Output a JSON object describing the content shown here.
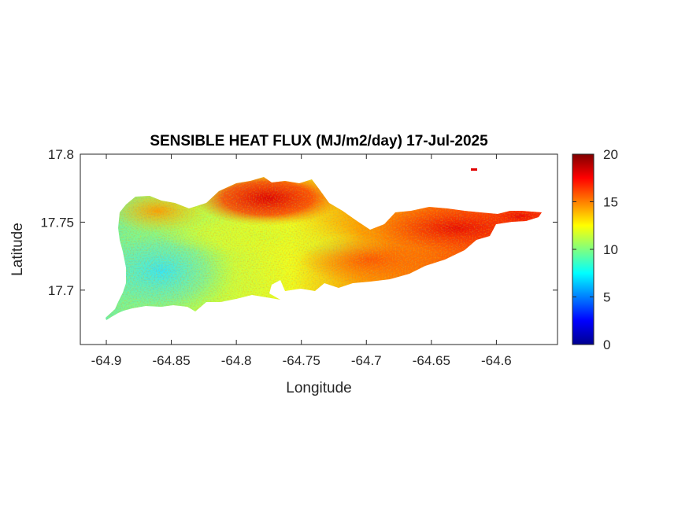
{
  "chart_data": {
    "type": "heatmap",
    "title": "SENSIBLE HEAT FLUX (MJ/m2/day) 17-Jul-2025",
    "xlabel": "Longitude",
    "ylabel": "Latitude",
    "xlim": [
      -64.92,
      -64.553
    ],
    "ylim": [
      17.66,
      17.8
    ],
    "x_ticks": [
      -64.9,
      -64.85,
      -64.8,
      -64.75,
      -64.7,
      -64.65,
      -64.6
    ],
    "x_tick_labels": [
      "-64.9",
      "-64.85",
      "-64.8",
      "-64.75",
      "-64.7",
      "-64.65",
      "-64.6"
    ],
    "y_ticks": [
      17.7,
      17.75,
      17.8
    ],
    "y_tick_labels": [
      "17.7",
      "17.75",
      "17.8"
    ],
    "colorbar": {
      "colormap": "jet",
      "limits": [
        0,
        20
      ],
      "ticks": [
        0,
        5,
        10,
        15,
        20
      ],
      "tick_labels": [
        "0",
        "5",
        "10",
        "15",
        "20"
      ],
      "placement": "right",
      "colors": [
        "#00008f",
        "#0000ff",
        "#00ffff",
        "#ffff00",
        "#ff0000",
        "#800000"
      ]
    },
    "grid": false,
    "field": {
      "description_values": "approximate flux values by region",
      "west_interior": 9,
      "central_band": 12,
      "north_central_ridge": 18,
      "east": 17,
      "east_tip": 19
    }
  }
}
